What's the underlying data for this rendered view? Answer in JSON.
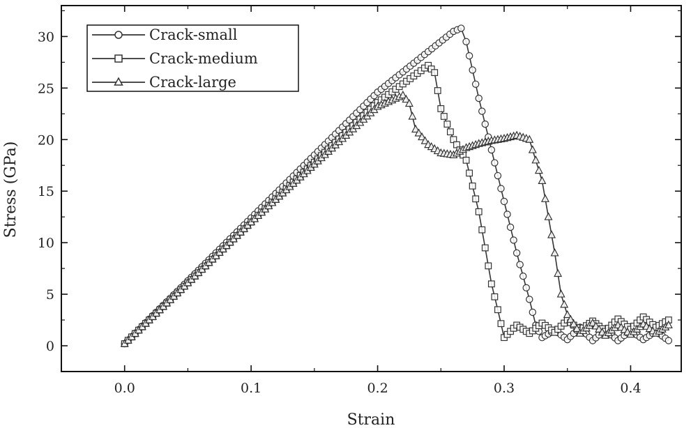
{
  "chart_data": {
    "type": "line",
    "xlabel": "Strain",
    "ylabel": "Stress (GPa)",
    "xlim": [
      -0.05,
      0.44
    ],
    "ylim": [
      -2.5,
      33
    ],
    "x_ticks": [
      0.0,
      0.1,
      0.2,
      0.3,
      0.4
    ],
    "x_tick_labels": [
      "0.0",
      "0.1",
      "0.2",
      "0.3",
      "0.4"
    ],
    "y_ticks": [
      0,
      5,
      10,
      15,
      20,
      25,
      30
    ],
    "y_tick_labels": [
      "0",
      "5",
      "10",
      "15",
      "20",
      "25",
      "30"
    ],
    "legend_position": "top-left",
    "grid": false,
    "series": [
      {
        "name": "Crack-small",
        "marker": "circle",
        "points": [
          [
            0.0,
            0.2
          ],
          [
            0.1,
            12.4
          ],
          [
            0.2,
            24.6
          ],
          [
            0.26,
            30.5
          ],
          [
            0.266,
            30.8
          ],
          [
            0.27,
            29.5
          ],
          [
            0.28,
            24.0
          ],
          [
            0.29,
            19.0
          ],
          [
            0.3,
            14.0
          ],
          [
            0.31,
            9.0
          ],
          [
            0.32,
            4.5
          ],
          [
            0.325,
            2.0
          ],
          [
            0.33,
            0.8
          ],
          [
            0.34,
            1.5
          ],
          [
            0.35,
            0.6
          ],
          [
            0.36,
            1.8
          ],
          [
            0.37,
            0.5
          ],
          [
            0.38,
            1.6
          ],
          [
            0.39,
            0.5
          ],
          [
            0.4,
            1.5
          ],
          [
            0.41,
            0.6
          ],
          [
            0.42,
            1.4
          ],
          [
            0.43,
            0.5
          ]
        ]
      },
      {
        "name": "Crack-medium",
        "marker": "square",
        "points": [
          [
            0.0,
            0.2
          ],
          [
            0.1,
            12.0
          ],
          [
            0.2,
            23.6
          ],
          [
            0.24,
            27.2
          ],
          [
            0.245,
            26.5
          ],
          [
            0.25,
            23.0
          ],
          [
            0.26,
            20.0
          ],
          [
            0.27,
            18.0
          ],
          [
            0.28,
            13.0
          ],
          [
            0.29,
            6.0
          ],
          [
            0.295,
            3.5
          ],
          [
            0.3,
            0.8
          ],
          [
            0.31,
            2.0
          ],
          [
            0.32,
            1.2
          ],
          [
            0.33,
            2.2
          ],
          [
            0.34,
            1.3
          ],
          [
            0.35,
            2.5
          ],
          [
            0.36,
            1.5
          ],
          [
            0.37,
            2.4
          ],
          [
            0.38,
            1.4
          ],
          [
            0.39,
            2.6
          ],
          [
            0.4,
            1.6
          ],
          [
            0.41,
            2.8
          ],
          [
            0.42,
            1.8
          ],
          [
            0.43,
            2.5
          ]
        ]
      },
      {
        "name": "Crack-large",
        "marker": "triangle",
        "points": [
          [
            0.0,
            0.2
          ],
          [
            0.1,
            12.0
          ],
          [
            0.2,
            23.2
          ],
          [
            0.22,
            24.3
          ],
          [
            0.225,
            23.5
          ],
          [
            0.23,
            21.0
          ],
          [
            0.24,
            19.5
          ],
          [
            0.25,
            18.7
          ],
          [
            0.26,
            18.5
          ],
          [
            0.27,
            19.2
          ],
          [
            0.28,
            19.6
          ],
          [
            0.29,
            19.9
          ],
          [
            0.3,
            20.1
          ],
          [
            0.31,
            20.4
          ],
          [
            0.32,
            20.0
          ],
          [
            0.33,
            16.0
          ],
          [
            0.34,
            9.0
          ],
          [
            0.345,
            5.0
          ],
          [
            0.35,
            3.0
          ],
          [
            0.36,
            1.2
          ],
          [
            0.37,
            2.2
          ],
          [
            0.38,
            1.0
          ],
          [
            0.39,
            2.0
          ],
          [
            0.4,
            1.1
          ],
          [
            0.41,
            2.1
          ],
          [
            0.42,
            1.2
          ],
          [
            0.43,
            2.0
          ]
        ]
      }
    ]
  }
}
